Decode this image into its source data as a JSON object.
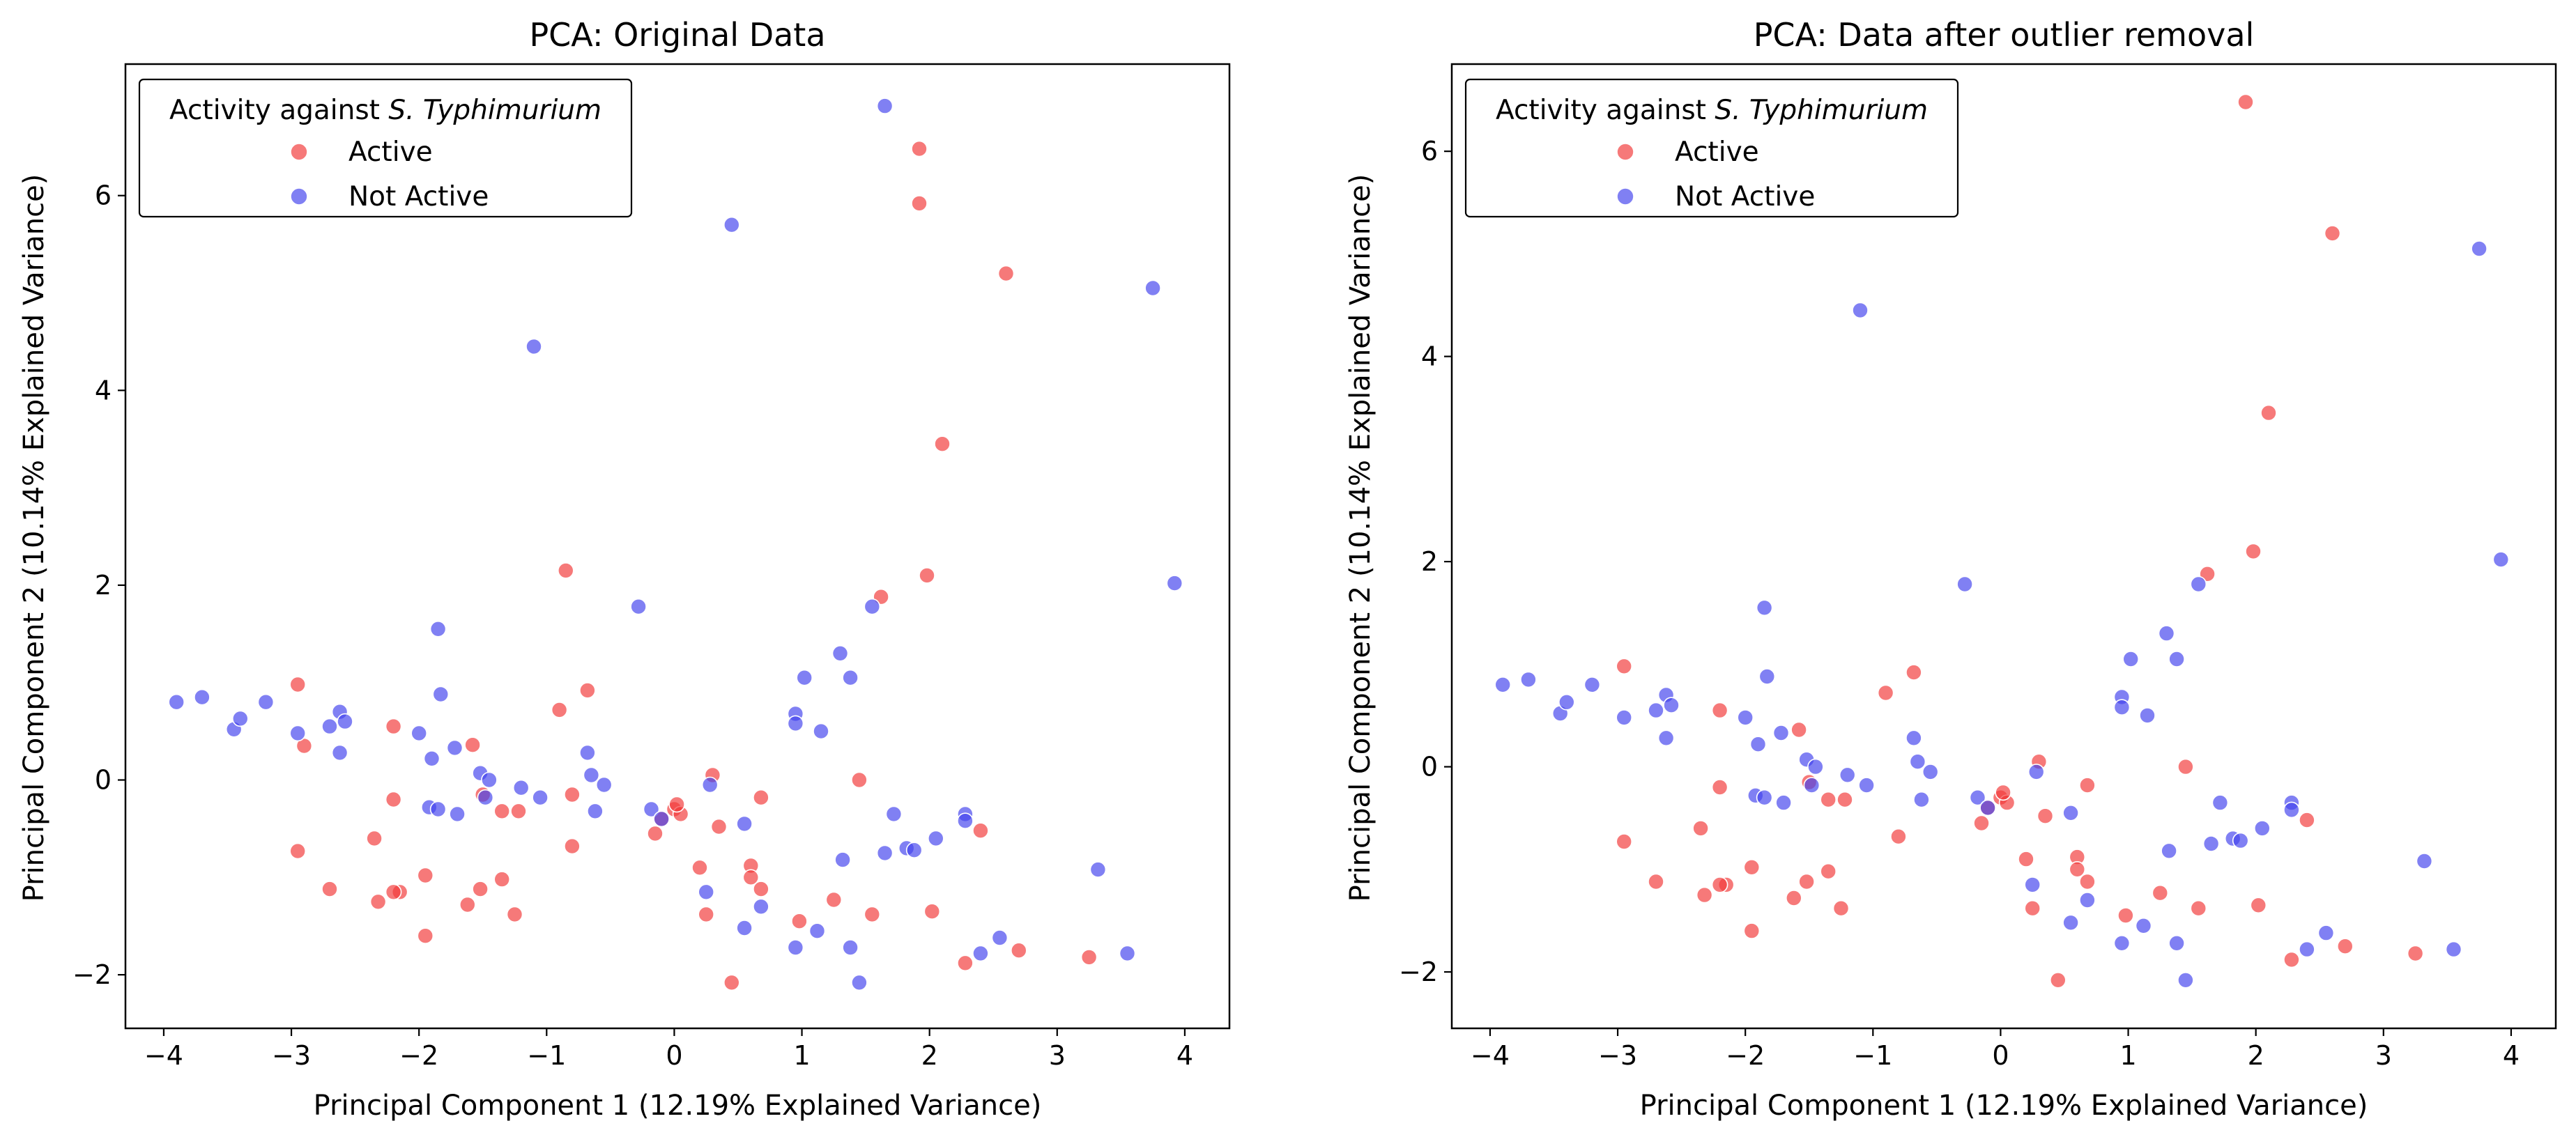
{
  "colors": {
    "active": "#f23a3a",
    "not_active": "#4444ee",
    "frame": "#000000"
  },
  "legend": {
    "title_prefix": "Activity against ",
    "title_italic": "S. Typhimurium",
    "items": [
      "Active",
      "Not Active"
    ]
  },
  "panels": [
    {
      "title": "PCA: Original Data",
      "xlabel": "Principal Component 1 (12.19% Explained Variance)",
      "ylabel": "Principal Component 2 (10.14% Explained Variance)"
    },
    {
      "title": "PCA: Data after outlier removal",
      "xlabel": "Principal Component 1 (12.19% Explained Variance)",
      "ylabel": "Principal Component 2 (10.14% Explained Variance)"
    }
  ],
  "chart_data": [
    {
      "type": "scatter",
      "title": "PCA: Original Data",
      "xlabel": "Principal Component 1 (12.19% Explained Variance)",
      "ylabel": "Principal Component 2 (10.14% Explained Variance)",
      "xlim": [
        -4.3,
        4.35
      ],
      "ylim": [
        -2.55,
        7.35
      ],
      "xticks": [
        -4,
        -3,
        -2,
        -1,
        0,
        1,
        2,
        3,
        4
      ],
      "yticks": [
        -2,
        0,
        2,
        4,
        6
      ],
      "grid": false,
      "legend_position": "top-left",
      "series": [
        {
          "name": "Active",
          "points": [
            [
              1.92,
              6.48
            ],
            [
              1.92,
              5.92
            ],
            [
              2.6,
              5.2
            ],
            [
              2.1,
              3.45
            ],
            [
              1.98,
              2.1
            ],
            [
              1.62,
              1.88
            ],
            [
              -0.85,
              2.15
            ],
            [
              -0.68,
              0.92
            ],
            [
              -0.9,
              0.72
            ],
            [
              -2.95,
              0.98
            ],
            [
              -2.9,
              0.35
            ],
            [
              -2.2,
              0.55
            ],
            [
              -1.58,
              0.36
            ],
            [
              -2.95,
              -0.73
            ],
            [
              -2.7,
              -1.12
            ],
            [
              -2.2,
              -0.2
            ],
            [
              -2.35,
              -0.6
            ],
            [
              -2.32,
              -1.25
            ],
            [
              -2.15,
              -1.15
            ],
            [
              -2.2,
              -1.15
            ],
            [
              -1.95,
              -0.98
            ],
            [
              -1.95,
              -1.6
            ],
            [
              -1.62,
              -1.28
            ],
            [
              -1.52,
              -1.12
            ],
            [
              -1.35,
              -1.02
            ],
            [
              -1.25,
              -1.38
            ],
            [
              -1.35,
              -0.32
            ],
            [
              -1.22,
              -0.32
            ],
            [
              -1.5,
              -0.15
            ],
            [
              -0.8,
              -0.15
            ],
            [
              -0.8,
              -0.68
            ],
            [
              -0.15,
              -0.55
            ],
            [
              -0.1,
              -0.4
            ],
            [
              0.0,
              -0.3
            ],
            [
              0.05,
              -0.35
            ],
            [
              0.02,
              -0.25
            ],
            [
              0.2,
              -0.9
            ],
            [
              0.25,
              -1.38
            ],
            [
              0.3,
              0.05
            ],
            [
              0.35,
              -0.48
            ],
            [
              0.68,
              -0.18
            ],
            [
              0.6,
              -0.88
            ],
            [
              0.6,
              -1.0
            ],
            [
              0.68,
              -1.12
            ],
            [
              0.45,
              -2.08
            ],
            [
              0.98,
              -1.45
            ],
            [
              1.25,
              -1.23
            ],
            [
              1.45,
              0.0
            ],
            [
              1.55,
              -1.38
            ],
            [
              2.02,
              -1.35
            ],
            [
              2.28,
              -1.88
            ],
            [
              2.4,
              -0.52
            ],
            [
              2.7,
              -1.75
            ],
            [
              3.25,
              -1.82
            ]
          ]
        },
        {
          "name": "Not Active",
          "points": [
            [
              1.65,
              6.92
            ],
            [
              0.45,
              5.7
            ],
            [
              3.75,
              5.05
            ],
            [
              -1.1,
              4.45
            ],
            [
              3.92,
              2.02
            ],
            [
              -0.28,
              1.78
            ],
            [
              1.55,
              1.78
            ],
            [
              1.3,
              1.3
            ],
            [
              1.38,
              1.05
            ],
            [
              1.02,
              1.05
            ],
            [
              0.95,
              0.68
            ],
            [
              0.95,
              0.58
            ],
            [
              1.15,
              0.5
            ],
            [
              -3.9,
              0.8
            ],
            [
              -3.7,
              0.85
            ],
            [
              -3.2,
              0.8
            ],
            [
              -3.45,
              0.52
            ],
            [
              -3.4,
              0.63
            ],
            [
              -2.62,
              0.7
            ],
            [
              -2.58,
              0.6
            ],
            [
              -2.7,
              0.55
            ],
            [
              -2.62,
              0.28
            ],
            [
              -2.95,
              0.48
            ],
            [
              -1.85,
              1.55
            ],
            [
              -1.83,
              0.88
            ],
            [
              -2.0,
              0.48
            ],
            [
              -1.9,
              0.22
            ],
            [
              -1.72,
              0.33
            ],
            [
              -1.52,
              0.07
            ],
            [
              -1.45,
              0.0
            ],
            [
              -1.2,
              -0.08
            ],
            [
              -1.92,
              -0.28
            ],
            [
              -1.85,
              -0.3
            ],
            [
              -1.7,
              -0.35
            ],
            [
              -1.48,
              -0.18
            ],
            [
              -1.05,
              -0.18
            ],
            [
              -0.68,
              0.28
            ],
            [
              -0.65,
              0.05
            ],
            [
              -0.55,
              -0.05
            ],
            [
              -0.62,
              -0.32
            ],
            [
              -0.18,
              -0.3
            ],
            [
              -0.1,
              -0.4
            ],
            [
              0.28,
              -0.05
            ],
            [
              0.25,
              -1.15
            ],
            [
              0.55,
              -0.45
            ],
            [
              0.55,
              -1.52
            ],
            [
              0.68,
              -1.3
            ],
            [
              0.95,
              -1.72
            ],
            [
              1.12,
              -1.55
            ],
            [
              1.32,
              -0.82
            ],
            [
              1.38,
              -1.72
            ],
            [
              1.45,
              -2.08
            ],
            [
              1.72,
              -0.35
            ],
            [
              1.65,
              -0.75
            ],
            [
              1.82,
              -0.7
            ],
            [
              1.88,
              -0.72
            ],
            [
              2.05,
              -0.6
            ],
            [
              2.28,
              -0.35
            ],
            [
              2.28,
              -0.42
            ],
            [
              2.4,
              -1.78
            ],
            [
              2.55,
              -1.62
            ],
            [
              3.32,
              -0.92
            ],
            [
              3.55,
              -1.78
            ]
          ]
        }
      ]
    },
    {
      "type": "scatter",
      "title": "PCA: Data after outlier removal",
      "xlabel": "Principal Component 1 (12.19% Explained Variance)",
      "ylabel": "Principal Component 2 (10.14% Explained Variance)",
      "xlim": [
        -4.3,
        4.35
      ],
      "ylim": [
        -2.55,
        6.85
      ],
      "xticks": [
        -4,
        -3,
        -2,
        -1,
        0,
        1,
        2,
        3,
        4
      ],
      "yticks": [
        -2,
        0,
        2,
        4,
        6
      ],
      "grid": false,
      "legend_position": "top-left",
      "series": [
        {
          "name": "Active",
          "points": [
            [
              1.92,
              6.48
            ],
            [
              2.6,
              5.2
            ],
            [
              2.1,
              3.45
            ],
            [
              1.98,
              2.1
            ],
            [
              1.62,
              1.88
            ],
            [
              -0.68,
              0.92
            ],
            [
              -0.9,
              0.72
            ],
            [
              -2.95,
              0.98
            ],
            [
              -2.2,
              0.55
            ],
            [
              -1.58,
              0.36
            ],
            [
              -2.95,
              -0.73
            ],
            [
              -2.7,
              -1.12
            ],
            [
              -2.2,
              -0.2
            ],
            [
              -2.35,
              -0.6
            ],
            [
              -2.32,
              -1.25
            ],
            [
              -2.15,
              -1.15
            ],
            [
              -2.2,
              -1.15
            ],
            [
              -1.95,
              -0.98
            ],
            [
              -1.95,
              -1.6
            ],
            [
              -1.62,
              -1.28
            ],
            [
              -1.52,
              -1.12
            ],
            [
              -1.35,
              -1.02
            ],
            [
              -1.25,
              -1.38
            ],
            [
              -1.35,
              -0.32
            ],
            [
              -1.22,
              -0.32
            ],
            [
              -1.5,
              -0.15
            ],
            [
              -0.8,
              -0.68
            ],
            [
              -0.15,
              -0.55
            ],
            [
              -0.1,
              -0.4
            ],
            [
              0.0,
              -0.3
            ],
            [
              0.05,
              -0.35
            ],
            [
              0.02,
              -0.25
            ],
            [
              0.2,
              -0.9
            ],
            [
              0.25,
              -1.38
            ],
            [
              0.3,
              0.05
            ],
            [
              0.35,
              -0.48
            ],
            [
              0.68,
              -0.18
            ],
            [
              0.6,
              -0.88
            ],
            [
              0.6,
              -1.0
            ],
            [
              0.68,
              -1.12
            ],
            [
              0.45,
              -2.08
            ],
            [
              0.98,
              -1.45
            ],
            [
              1.25,
              -1.23
            ],
            [
              1.45,
              0.0
            ],
            [
              1.55,
              -1.38
            ],
            [
              2.02,
              -1.35
            ],
            [
              2.28,
              -1.88
            ],
            [
              2.4,
              -0.52
            ],
            [
              2.7,
              -1.75
            ],
            [
              3.25,
              -1.82
            ]
          ]
        },
        {
          "name": "Not Active",
          "points": [
            [
              3.75,
              5.05
            ],
            [
              -1.1,
              4.45
            ],
            [
              3.92,
              2.02
            ],
            [
              -0.28,
              1.78
            ],
            [
              1.55,
              1.78
            ],
            [
              1.3,
              1.3
            ],
            [
              1.38,
              1.05
            ],
            [
              1.02,
              1.05
            ],
            [
              0.95,
              0.68
            ],
            [
              0.95,
              0.58
            ],
            [
              1.15,
              0.5
            ],
            [
              -3.9,
              0.8
            ],
            [
              -3.7,
              0.85
            ],
            [
              -3.2,
              0.8
            ],
            [
              -3.45,
              0.52
            ],
            [
              -3.4,
              0.63
            ],
            [
              -2.62,
              0.7
            ],
            [
              -2.58,
              0.6
            ],
            [
              -2.7,
              0.55
            ],
            [
              -2.62,
              0.28
            ],
            [
              -2.95,
              0.48
            ],
            [
              -1.85,
              1.55
            ],
            [
              -1.83,
              0.88
            ],
            [
              -2.0,
              0.48
            ],
            [
              -1.9,
              0.22
            ],
            [
              -1.72,
              0.33
            ],
            [
              -1.52,
              0.07
            ],
            [
              -1.45,
              0.0
            ],
            [
              -1.2,
              -0.08
            ],
            [
              -1.92,
              -0.28
            ],
            [
              -1.85,
              -0.3
            ],
            [
              -1.7,
              -0.35
            ],
            [
              -1.48,
              -0.18
            ],
            [
              -1.05,
              -0.18
            ],
            [
              -0.68,
              0.28
            ],
            [
              -0.65,
              0.05
            ],
            [
              -0.55,
              -0.05
            ],
            [
              -0.62,
              -0.32
            ],
            [
              -0.18,
              -0.3
            ],
            [
              -0.1,
              -0.4
            ],
            [
              0.28,
              -0.05
            ],
            [
              0.25,
              -1.15
            ],
            [
              0.55,
              -0.45
            ],
            [
              0.55,
              -1.52
            ],
            [
              0.68,
              -1.3
            ],
            [
              0.95,
              -1.72
            ],
            [
              1.12,
              -1.55
            ],
            [
              1.32,
              -0.82
            ],
            [
              1.38,
              -1.72
            ],
            [
              1.45,
              -2.08
            ],
            [
              1.72,
              -0.35
            ],
            [
              1.65,
              -0.75
            ],
            [
              1.82,
              -0.7
            ],
            [
              1.88,
              -0.72
            ],
            [
              2.05,
              -0.6
            ],
            [
              2.28,
              -0.35
            ],
            [
              2.28,
              -0.42
            ],
            [
              2.4,
              -1.78
            ],
            [
              2.55,
              -1.62
            ],
            [
              3.32,
              -0.92
            ],
            [
              3.55,
              -1.78
            ]
          ]
        }
      ]
    }
  ]
}
